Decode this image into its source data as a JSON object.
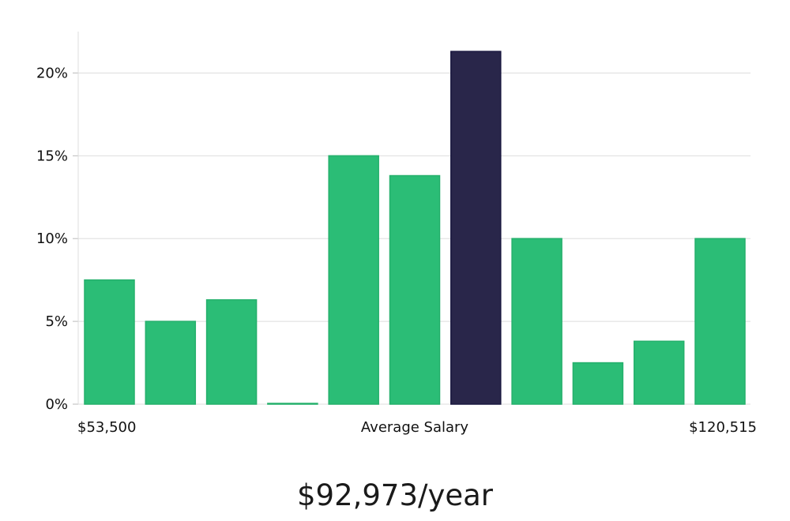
{
  "chart_data": {
    "type": "bar",
    "categories": [
      "1",
      "2",
      "3",
      "4",
      "5",
      "6",
      "7",
      "8",
      "9",
      "10",
      "11"
    ],
    "values": [
      7.5,
      5.0,
      6.3,
      0.0,
      15.0,
      13.8,
      21.3,
      10.0,
      2.5,
      3.8,
      10.0
    ],
    "highlight_index": 6,
    "colors": {
      "bar": "#2bbd76",
      "highlight": "#29264a",
      "grid": "#dddddd",
      "axis": "#dddddd"
    },
    "ylim": [
      0,
      22.5
    ],
    "yticks": [
      0,
      5,
      10,
      15,
      20
    ],
    "ytick_labels": [
      "0%",
      "5%",
      "10%",
      "15%",
      "20%"
    ],
    "x_axis_labels": {
      "left": "$53,500",
      "center": "Average Salary",
      "right": "$120,515"
    },
    "grid": true,
    "legend": "none"
  },
  "summary": {
    "salary_text": "$92,973/year"
  }
}
